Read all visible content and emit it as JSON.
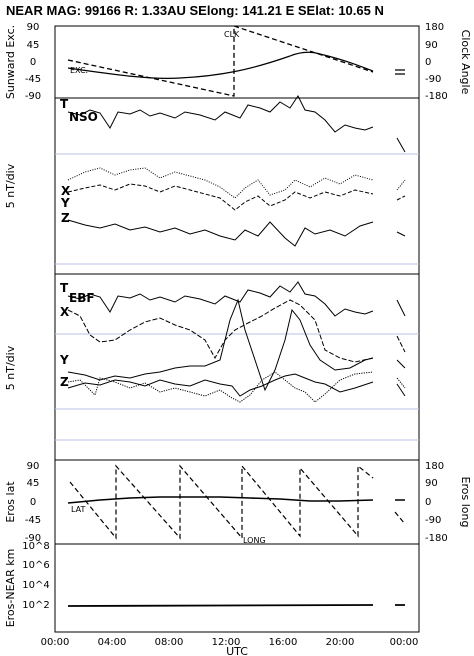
{
  "header": {
    "text": "NEAR MAG: 99166  R: 1.33AU  SElong:  141.21 E  SElat:  10.65 N"
  },
  "chart_data": [
    {
      "type": "line",
      "title": "",
      "xlabel": "UTC",
      "ylabel": "Sunward Exc.",
      "ylabel_right": "Clock Angle",
      "x_ticks": [
        "00:00",
        "04:00",
        "08:00",
        "12:00",
        "16:00",
        "20:00",
        "00:00"
      ],
      "xlim_hours": [
        0,
        24
      ],
      "ylim": [
        -90,
        90
      ],
      "y_ticks": [
        "90",
        "45",
        "0",
        "-45",
        "-90"
      ],
      "ylim_right": [
        -180,
        180
      ],
      "y_ticks_right": [
        "180",
        "90",
        "0",
        "-90",
        "-180"
      ],
      "annotations": [
        "CLK",
        "EXC."
      ],
      "series": [
        {
          "name": "EXC.",
          "x": [
            1,
            4,
            8,
            12,
            16,
            18,
            22
          ],
          "values": [
            -5,
            -22,
            -30,
            -20,
            15,
            20,
            -10
          ]
        },
        {
          "name": "CLK",
          "x": [
            1,
            12.3,
            12.3,
            22
          ],
          "values": [
            -10,
            -80,
            180,
            150
          ]
        }
      ]
    },
    {
      "type": "line",
      "ylabel": "5 nT/div",
      "panel_label": "NSO",
      "series": [
        {
          "name": "T",
          "x": [
            1,
            8,
            12,
            14,
            16,
            20,
            22
          ],
          "values": [
            5.2,
            5.5,
            5.0,
            5.6,
            6.4,
            5.0,
            4.8
          ]
        },
        {
          "name": "X",
          "x": [
            1,
            8,
            12,
            16,
            22
          ],
          "values": [
            0.2,
            0.0,
            -0.6,
            0.4,
            0.0
          ]
        },
        {
          "name": "Y",
          "x": [
            1,
            8,
            12,
            16,
            22
          ],
          "values": [
            -0.2,
            0.4,
            -1.0,
            -0.6,
            -0.2
          ]
        },
        {
          "name": "Z",
          "x": [
            1,
            8,
            12,
            16,
            22
          ],
          "values": [
            -1.3,
            -1.6,
            -2.0,
            -1.8,
            -1.3
          ]
        }
      ]
    },
    {
      "type": "line",
      "ylabel": "5 nT/div",
      "panel_label": "EBF",
      "series": [
        {
          "name": "T",
          "x": [
            1,
            8,
            12,
            14,
            16,
            20,
            22
          ],
          "values": [
            5.2,
            5.5,
            5.0,
            5.6,
            6.4,
            5.0,
            4.8
          ]
        },
        {
          "name": "X",
          "x": [
            1,
            4,
            8,
            12,
            16,
            22
          ],
          "values": [
            3.2,
            2.6,
            3.6,
            3.0,
            2.0,
            1.4
          ]
        },
        {
          "name": "Y",
          "x": [
            1,
            4,
            8,
            12,
            14,
            16,
            22
          ],
          "values": [
            0.2,
            0.0,
            0.4,
            4.0,
            -0.4,
            1.0,
            0.6
          ]
        },
        {
          "name": "Z",
          "x": [
            1,
            8,
            12,
            14,
            16,
            22
          ],
          "values": [
            -0.4,
            -0.2,
            -1.4,
            1.2,
            -0.8,
            -0.2
          ]
        }
      ]
    },
    {
      "type": "line",
      "ylabel": "Eros lat",
      "ylabel_right": "Eros long",
      "ylim": [
        -90,
        90
      ],
      "y_ticks": [
        "90",
        "45",
        "0",
        "-45",
        "-90"
      ],
      "ylim_right": [
        -180,
        180
      ],
      "y_ticks_right": [
        "180",
        "90",
        "0",
        "-90",
        "-180"
      ],
      "annotations": [
        "LAT",
        "LONG"
      ],
      "series": [
        {
          "name": "LAT",
          "x": [
            1,
            6,
            10,
            14,
            18,
            22
          ],
          "values": [
            -5,
            0,
            3,
            0,
            -3,
            -2
          ]
        },
        {
          "name": "LONG",
          "period_hours": 6.2,
          "first_peak_hours": 3.6,
          "range": [
            -180,
            180
          ]
        }
      ]
    },
    {
      "type": "line",
      "ylabel": "Eros-NEAR km",
      "yscale": "log",
      "y_ticks": [
        "10^2",
        "10^4",
        "10^6",
        "10^8"
      ],
      "series": [
        {
          "name": "Eros-NEAR",
          "x": [
            1,
            22
          ],
          "values": [
            50,
            55
          ]
        }
      ]
    }
  ]
}
